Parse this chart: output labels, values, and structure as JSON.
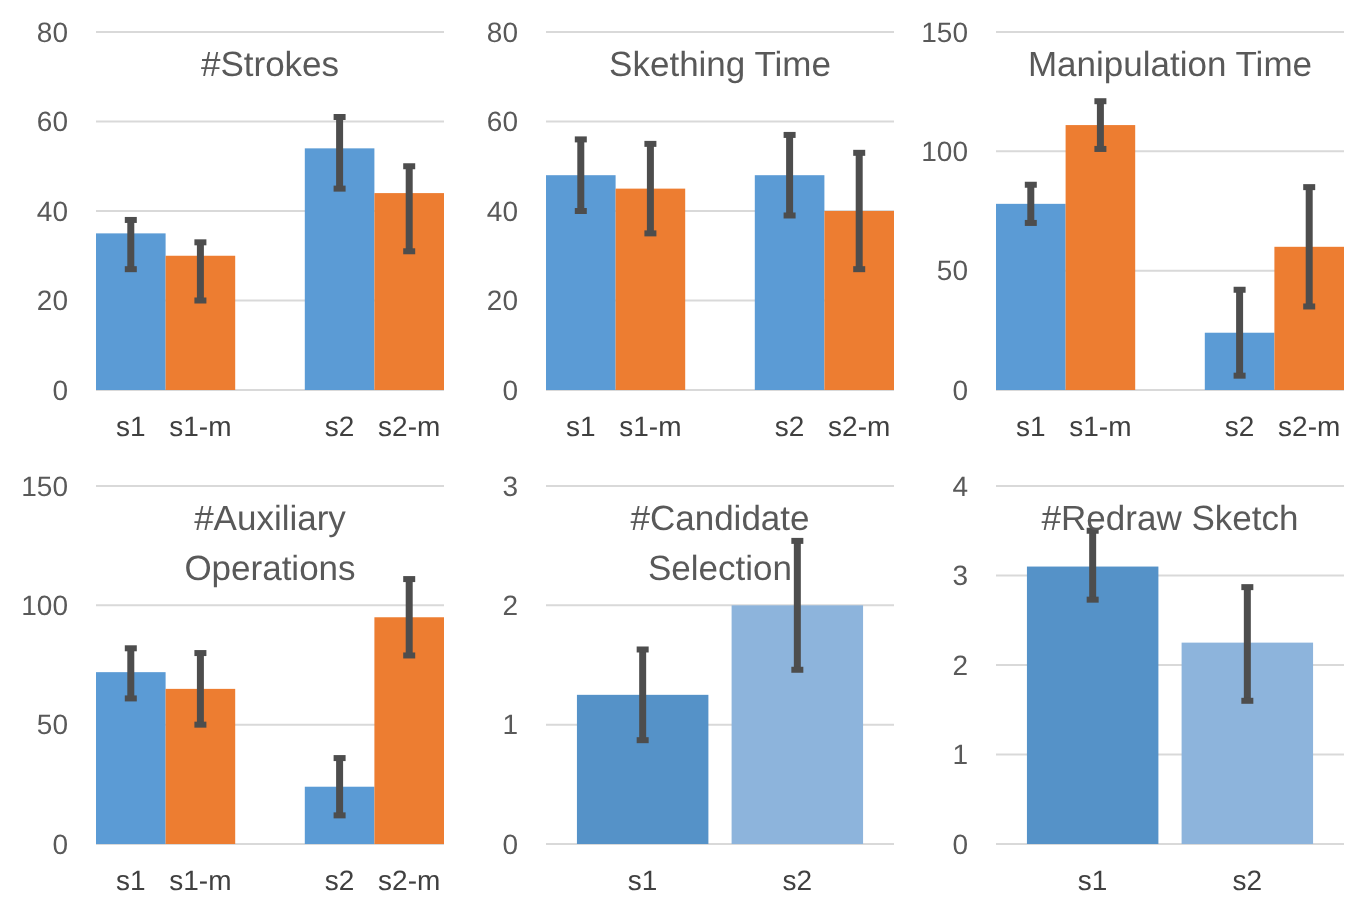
{
  "chart_data": [
    {
      "type": "bar",
      "title": "#Strokes",
      "categories": [
        "s1",
        "s1-m",
        null,
        "s2",
        "s2-m"
      ],
      "values": [
        35,
        30,
        null,
        54,
        44
      ],
      "errors": [
        [
          27,
          38
        ],
        [
          20,
          33
        ],
        null,
        [
          45,
          61
        ],
        [
          31,
          50
        ]
      ],
      "colors": [
        "#5b9bd5",
        "#ed7d31",
        null,
        "#5b9bd5",
        "#ed7d31"
      ],
      "ylim": [
        0,
        80
      ],
      "yticks": [
        0,
        20,
        40,
        60,
        80
      ],
      "grid": "y"
    },
    {
      "type": "bar",
      "title": "Skething Time",
      "categories": [
        "s1",
        "s1-m",
        null,
        "s2",
        "s2-m"
      ],
      "values": [
        48,
        45,
        null,
        48,
        40
      ],
      "errors": [
        [
          40,
          56
        ],
        [
          35,
          55
        ],
        null,
        [
          39,
          57
        ],
        [
          27,
          53
        ]
      ],
      "colors": [
        "#5b9bd5",
        "#ed7d31",
        null,
        "#5b9bd5",
        "#ed7d31"
      ],
      "ylim": [
        0,
        80
      ],
      "yticks": [
        0,
        20,
        40,
        60,
        80
      ],
      "grid": "y"
    },
    {
      "type": "bar",
      "title": "Manipulation Time",
      "categories": [
        "s1",
        "s1-m",
        null,
        "s2",
        "s2-m"
      ],
      "values": [
        78,
        111,
        null,
        24,
        60
      ],
      "errors": [
        [
          70,
          86
        ],
        [
          101,
          121
        ],
        null,
        [
          6,
          42
        ],
        [
          35,
          85
        ]
      ],
      "colors": [
        "#5b9bd5",
        "#ed7d31",
        null,
        "#5b9bd5",
        "#ed7d31"
      ],
      "ylim": [
        0,
        150
      ],
      "yticks": [
        0,
        50,
        100,
        150
      ],
      "grid": "y"
    },
    {
      "type": "bar",
      "title": "#Auxiliary Operations",
      "categories": [
        "s1",
        "s1-m",
        null,
        "s2",
        "s2-m"
      ],
      "values": [
        72,
        65,
        null,
        24,
        95
      ],
      "errors": [
        [
          61,
          82
        ],
        [
          50,
          80
        ],
        null,
        [
          12,
          36
        ],
        [
          79,
          111
        ]
      ],
      "colors": [
        "#5b9bd5",
        "#ed7d31",
        null,
        "#5b9bd5",
        "#ed7d31"
      ],
      "ylim": [
        0,
        150
      ],
      "yticks": [
        0,
        50,
        100,
        150
      ],
      "grid": "y"
    },
    {
      "type": "bar",
      "title": "#Candidate Selection",
      "categories": [
        "s1",
        "s2"
      ],
      "values": [
        1.25,
        2.0
      ],
      "errors": [
        [
          0.87,
          1.63
        ],
        [
          1.46,
          2.54
        ]
      ],
      "colors": [
        "#5592c8",
        "#8db4dc"
      ],
      "ylim": [
        0,
        3
      ],
      "yticks": [
        0,
        1,
        2,
        3
      ],
      "grid": "y"
    },
    {
      "type": "bar",
      "title": "#Redraw Sketch",
      "categories": [
        "s1",
        "s2"
      ],
      "values": [
        3.1,
        2.25
      ],
      "errors": [
        [
          2.73,
          3.5
        ],
        [
          1.6,
          2.87
        ]
      ],
      "colors": [
        "#5592c8",
        "#8db4dc"
      ],
      "ylim": [
        0,
        4
      ],
      "yticks": [
        0,
        1,
        2,
        3,
        4
      ],
      "grid": "y"
    }
  ]
}
